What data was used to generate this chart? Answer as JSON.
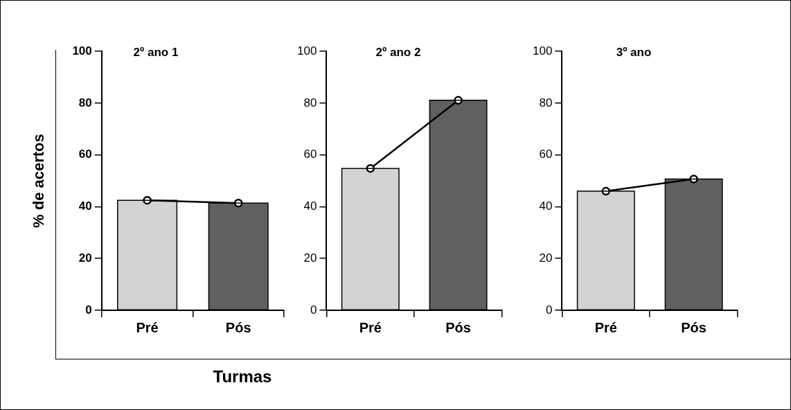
{
  "chart_data": [
    {
      "type": "bar",
      "title": "2º ano 1",
      "ylabel": "% de acertos",
      "categories": [
        "Pré",
        "Pós"
      ],
      "ylim": [
        0,
        100
      ],
      "yticks": [
        0,
        20,
        40,
        60,
        80,
        100
      ],
      "series": [
        {
          "colors": [
            "#d3d3d3",
            "#606060"
          ],
          "values": [
            42.5,
            41.4
          ]
        },
        {
          "type": "line",
          "color": "#000000",
          "marker": "circle",
          "values": [
            42.5,
            41.4
          ]
        }
      ]
    },
    {
      "type": "bar",
      "title": "2º ano 2",
      "xlabel": "Turmas",
      "categories": [
        "Pré",
        "Pós"
      ],
      "ylim": [
        0,
        100
      ],
      "yticks": [
        0,
        20,
        40,
        60,
        80,
        100
      ],
      "series": [
        {
          "colors": [
            "#d3d3d3",
            "#606060"
          ],
          "values": [
            54.8,
            81.1
          ]
        },
        {
          "type": "line",
          "color": "#000000",
          "marker": "circle",
          "values": [
            54.8,
            81.1
          ]
        }
      ]
    },
    {
      "type": "bar",
      "title": "3º ano",
      "categories": [
        "Pré",
        "Pós"
      ],
      "ylim": [
        0,
        100
      ],
      "yticks": [
        0,
        20,
        40,
        60,
        80,
        100
      ],
      "series": [
        {
          "colors": [
            "#d3d3d3",
            "#606060"
          ],
          "values": [
            46.0,
            50.7
          ]
        },
        {
          "type": "line",
          "color": "#000000",
          "marker": "circle",
          "values": [
            46.0,
            50.7
          ]
        }
      ]
    }
  ]
}
